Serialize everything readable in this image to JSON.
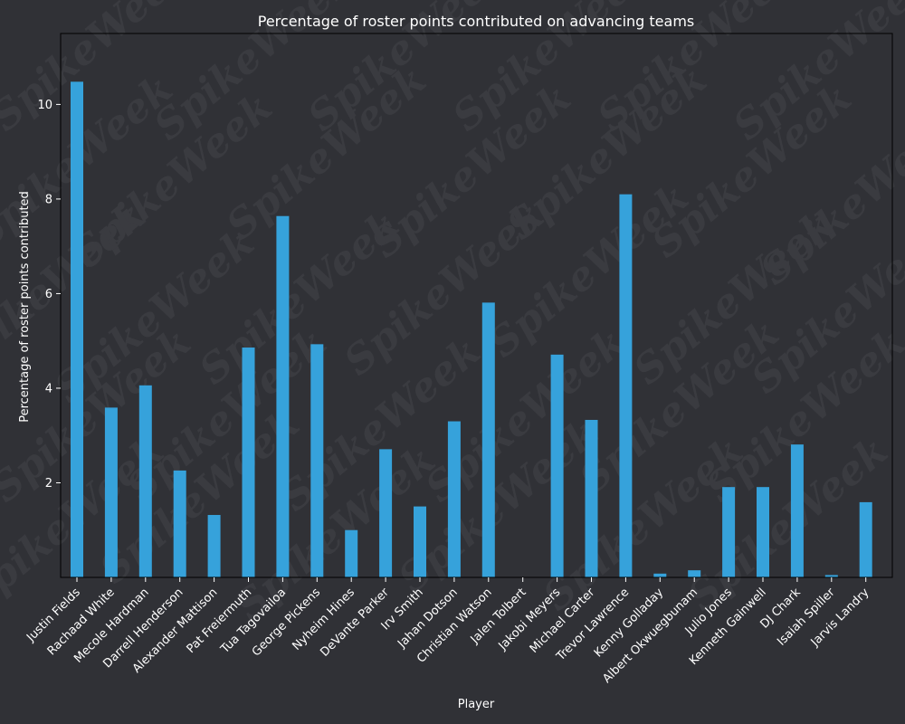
{
  "chart_data": {
    "type": "bar",
    "title": "Percentage of roster points contributed on advancing teams",
    "xlabel": "Player",
    "ylabel": "Percentage of roster points contributed",
    "categories": [
      "Justin Fields",
      "Rachaad White",
      "Mecole Hardman",
      "Darrell Henderson",
      "Alexander Mattison",
      "Pat Freiermuth",
      "Tua Tagovailoa",
      "George Pickens",
      "Nyheim Hines",
      "DeVante Parker",
      "Irv Smith",
      "Jahan Dotson",
      "Christian Watson",
      "Jalen Tolbert",
      "Jakobi Meyers",
      "Michael Carter",
      "Trevor Lawrence",
      "Kenny Golladay",
      "Albert Okwuegbunam",
      "Julio Jones",
      "Kenneth Gainwell",
      "DJ Chark",
      "Isaiah Spiller",
      "Jarvis Landry"
    ],
    "values": [
      10.48,
      3.59,
      4.06,
      2.26,
      1.32,
      4.86,
      7.64,
      4.93,
      1.0,
      2.71,
      1.5,
      3.3,
      5.81,
      0.0,
      4.71,
      3.33,
      8.1,
      0.08,
      0.15,
      1.91,
      1.91,
      2.81,
      0.05,
      1.59
    ],
    "ylim": [
      0,
      11.5
    ],
    "yticks": [
      2,
      4,
      6,
      8,
      10
    ],
    "grid": false,
    "bar_color": "#36a2db",
    "background_color": "#303136",
    "text_color": "#ffffff",
    "watermark": "SpikeWeek"
  }
}
